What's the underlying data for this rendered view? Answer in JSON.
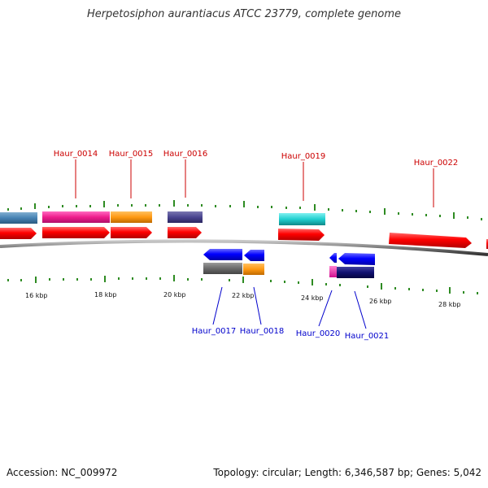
{
  "title": "Herpetosiphon aurantiacus ATCC 23779, complete genome",
  "footer": {
    "accession": "Accession: NC_009972",
    "summary": "Topology: circular; Length: 6,346,587 bp; Genes: 5,042"
  },
  "scale_labels": [
    "16 kbp",
    "18 kbp",
    "20 kbp",
    "22 kbp",
    "24 kbp",
    "26 kbp",
    "28 kbp"
  ],
  "genes": [
    {
      "name": "Haur_0014",
      "color": "#cc0000"
    },
    {
      "name": "Haur_0015",
      "color": "#cc0000"
    },
    {
      "name": "Haur_0016",
      "color": "#cc0000"
    },
    {
      "name": "Haur_0019",
      "color": "#cc0000"
    },
    {
      "name": "Haur_0022",
      "color": "#cc0000"
    },
    {
      "name": "Haur_0017",
      "color": "#0000cc"
    },
    {
      "name": "Haur_0018",
      "color": "#0000cc"
    },
    {
      "name": "Haur_0020",
      "color": "#0000cc"
    },
    {
      "name": "Haur_0021",
      "color": "#0000cc"
    }
  ],
  "colors": {
    "forward_cds": "#ff0000",
    "reverse_cds": "#0000ff",
    "backbone": "#888888",
    "tick": "#2e8b22"
  }
}
